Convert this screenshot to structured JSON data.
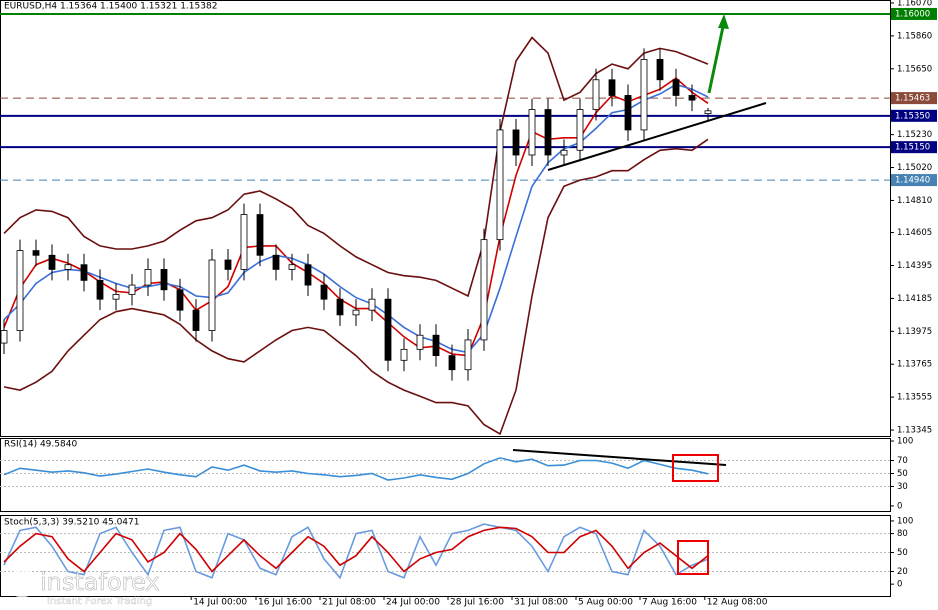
{
  "chart_data": [
    {
      "type": "candlestick",
      "title": "EURUSD,H4  1.15364 1.15400 1.15321 1.15382",
      "xlim": [
        -0.25,
        55.375
      ],
      "ylim": [
        1.13307,
        1.16089
      ],
      "xticks": [
        {
          "value": 11.7,
          "label": "14 Jul 00:00"
        },
        {
          "value": 15.75,
          "label": "16 Jul 16:00"
        },
        {
          "value": 19.75,
          "label": "21 Jul 08:00"
        },
        {
          "value": 23.75,
          "label": "24 Jul 00:00"
        },
        {
          "value": 27.75,
          "label": "28 Jul 16:00"
        },
        {
          "value": 31.75,
          "label": "31 Jul 08:00"
        },
        {
          "value": 35.75,
          "label": "5 Aug 00:00"
        },
        {
          "value": 39.75,
          "label": "7 Aug 16:00"
        },
        {
          "value": 43.8,
          "label": "12 Aug 08:00"
        }
      ],
      "yticks": [
        {
          "value": 1.1607,
          "label": "1.16070"
        },
        {
          "value": 1.1586,
          "label": "1.15860"
        },
        {
          "value": 1.1565,
          "label": "1.15650"
        },
        {
          "value": 1.1523,
          "label": "1.15230"
        },
        {
          "value": 1.1502,
          "label": "1.15020"
        },
        {
          "value": 1.1481,
          "label": "1.14810"
        },
        {
          "value": 1.14605,
          "label": "1.14605"
        },
        {
          "value": 1.14395,
          "label": "1.14395"
        },
        {
          "value": 1.14185,
          "label": "1.14185"
        },
        {
          "value": 1.13975,
          "label": "1.13975"
        },
        {
          "value": 1.13765,
          "label": "1.13765"
        },
        {
          "value": 1.13555,
          "label": "1.13555"
        },
        {
          "value": 1.13345,
          "label": "1.13345"
        }
      ],
      "levels": [
        {
          "value": 1.16,
          "label": "1.16000",
          "color": "#008000",
          "dashed": false
        },
        {
          "value": 1.15463,
          "label": "1.15463",
          "color": "#8b4a3a",
          "dashed": true
        },
        {
          "value": 1.1535,
          "label": "1.15350",
          "color": "#000080",
          "dashed": false
        },
        {
          "value": 1.1515,
          "label": "1.15150",
          "color": "#000080",
          "dashed": false
        },
        {
          "value": 1.1494,
          "label": "1.14940",
          "color": "#4682b4",
          "dashed": true
        }
      ],
      "up_color": "#ffffff",
      "down_color": "#000000",
      "open": [
        1.139,
        1.1398,
        1.1449,
        1.1446,
        1.1437,
        1.144,
        1.143,
        1.1418,
        1.1421,
        1.1427,
        1.1437,
        1.1424,
        1.1411,
        1.1398,
        1.1443,
        1.1437,
        1.1472,
        1.1446,
        1.1437,
        1.144,
        1.1427,
        1.1418,
        1.1408,
        1.1411,
        1.1418,
        1.1379,
        1.1386,
        1.1395,
        1.1382,
        1.1373,
        1.1392,
        1.1456,
        1.1526,
        1.151,
        1.1539,
        1.151,
        1.1513,
        1.1539,
        1.1558,
        1.1548,
        1.1526,
        1.1571,
        1.1558,
        1.1548,
        1.15364
      ],
      "high": [
        1.1405,
        1.1456,
        1.1456,
        1.1453,
        1.1447,
        1.1447,
        1.1437,
        1.1428,
        1.1434,
        1.1444,
        1.1444,
        1.1431,
        1.1418,
        1.145,
        1.145,
        1.1479,
        1.1479,
        1.1453,
        1.1447,
        1.1447,
        1.1434,
        1.1425,
        1.1418,
        1.1425,
        1.1425,
        1.1393,
        1.1402,
        1.1402,
        1.1389,
        1.1399,
        1.1463,
        1.1533,
        1.1533,
        1.1546,
        1.1546,
        1.152,
        1.1546,
        1.1565,
        1.1565,
        1.1555,
        1.1578,
        1.1578,
        1.1565,
        1.1555,
        1.154
      ],
      "low": [
        1.1383,
        1.1391,
        1.1439,
        1.143,
        1.143,
        1.1423,
        1.1411,
        1.1411,
        1.1414,
        1.142,
        1.1417,
        1.1404,
        1.1391,
        1.1391,
        1.143,
        1.143,
        1.1439,
        1.143,
        1.143,
        1.142,
        1.1411,
        1.1401,
        1.1401,
        1.1404,
        1.1372,
        1.1372,
        1.1379,
        1.1375,
        1.1366,
        1.1366,
        1.1385,
        1.1449,
        1.1503,
        1.1503,
        1.1503,
        1.1503,
        1.1506,
        1.1532,
        1.1541,
        1.1519,
        1.1519,
        1.1551,
        1.1541,
        1.1538,
        1.15321
      ],
      "close": [
        1.1398,
        1.1449,
        1.1446,
        1.1437,
        1.144,
        1.143,
        1.1418,
        1.1421,
        1.1427,
        1.1437,
        1.1424,
        1.1411,
        1.1398,
        1.1443,
        1.1437,
        1.1472,
        1.1446,
        1.1437,
        1.144,
        1.1427,
        1.1418,
        1.1408,
        1.1411,
        1.1418,
        1.1379,
        1.1386,
        1.1395,
        1.1382,
        1.1373,
        1.1392,
        1.1456,
        1.1526,
        1.151,
        1.1539,
        1.151,
        1.1513,
        1.1539,
        1.1558,
        1.1548,
        1.1526,
        1.1571,
        1.1558,
        1.1548,
        1.1545,
        1.15382
      ],
      "series": [
        {
          "color": "#d00000",
          "values": [
            1.14,
            1.1425,
            1.144,
            1.1444,
            1.1441,
            1.1436,
            1.1429,
            1.1423,
            1.1422,
            1.1428,
            1.1429,
            1.1424,
            1.1411,
            1.1417,
            1.1426,
            1.1451,
            1.1452,
            1.1452,
            1.1441,
            1.1435,
            1.1428,
            1.1418,
            1.1412,
            1.1412,
            1.1403,
            1.1394,
            1.1387,
            1.1388,
            1.1383,
            1.1382,
            1.1407,
            1.1458,
            1.1497,
            1.1525,
            1.152,
            1.1521,
            1.1521,
            1.1537,
            1.1548,
            1.1544,
            1.1548,
            1.1552,
            1.1559,
            1.155,
            1.1543
          ]
        },
        {
          "color": "#3a6fd8",
          "values": [
            1.1405,
            1.1415,
            1.1428,
            1.1435,
            1.1437,
            1.1436,
            1.1432,
            1.1428,
            1.1425,
            1.1426,
            1.1428,
            1.1426,
            1.142,
            1.1419,
            1.1422,
            1.1435,
            1.1442,
            1.1446,
            1.1444,
            1.144,
            1.1434,
            1.1426,
            1.1419,
            1.1415,
            1.1408,
            1.14,
            1.1394,
            1.1391,
            1.1386,
            1.1384,
            1.1396,
            1.1425,
            1.1458,
            1.149,
            1.1505,
            1.1514,
            1.1518,
            1.1527,
            1.1537,
            1.1539,
            1.1545,
            1.1549,
            1.1555,
            1.1552,
            1.1547
          ]
        },
        {
          "color": "#6b0f0f",
          "values": [
            1.146,
            1.147,
            1.1475,
            1.1474,
            1.147,
            1.1458,
            1.1452,
            1.145,
            1.145,
            1.1452,
            1.1455,
            1.1462,
            1.1468,
            1.147,
            1.1475,
            1.1485,
            1.1487,
            1.1482,
            1.1476,
            1.1465,
            1.146,
            1.1452,
            1.1445,
            1.144,
            1.1435,
            1.1433,
            1.1432,
            1.143,
            1.1425,
            1.142,
            1.1455,
            1.1525,
            1.157,
            1.1585,
            1.1575,
            1.1545,
            1.155,
            1.1562,
            1.1568,
            1.1565,
            1.1575,
            1.1578,
            1.1576,
            1.1572,
            1.1568
          ]
        },
        {
          "color": "#6b0f0f",
          "values": [
            1.1362,
            1.136,
            1.1365,
            1.1372,
            1.1385,
            1.1395,
            1.1405,
            1.141,
            1.1412,
            1.141,
            1.1408,
            1.1402,
            1.1392,
            1.1385,
            1.138,
            1.1378,
            1.1385,
            1.1392,
            1.1398,
            1.14,
            1.1398,
            1.139,
            1.1382,
            1.1372,
            1.1365,
            1.136,
            1.1356,
            1.1352,
            1.1352,
            1.135,
            1.1338,
            1.1332,
            1.136,
            1.142,
            1.147,
            1.149,
            1.1494,
            1.1496,
            1.15,
            1.15,
            1.1507,
            1.1513,
            1.1514,
            1.1513,
            1.152
          ]
        }
      ]
    },
    {
      "type": "line",
      "title": "RSI(14) 49.5840",
      "ylim": [
        -7.8,
        104.7
      ],
      "yticks": [
        0,
        30,
        50,
        70,
        100
      ],
      "series": [
        {
          "color": "#3a8fd8",
          "values": [
            48,
            58,
            55,
            52,
            54,
            51,
            46,
            49,
            53,
            57,
            52,
            48,
            45,
            60,
            55,
            63,
            54,
            52,
            54,
            50,
            48,
            45,
            47,
            50,
            40,
            43,
            48,
            44,
            41,
            50,
            65,
            74,
            68,
            72,
            62,
            63,
            70,
            70,
            66,
            58,
            70,
            64,
            58,
            55,
            49.584
          ]
        }
      ]
    },
    {
      "type": "line",
      "title": "Stoch(5,3,3) 39.5210 45.0471",
      "ylim": [
        -18.75,
        109.4
      ],
      "yticks": [
        0,
        20,
        50,
        80,
        100
      ],
      "series": [
        {
          "color": "#6a9be0",
          "values": [
            30,
            85,
            90,
            60,
            20,
            15,
            80,
            90,
            50,
            15,
            85,
            90,
            20,
            10,
            80,
            70,
            25,
            15,
            75,
            90,
            40,
            10,
            80,
            85,
            20,
            10,
            75,
            30,
            80,
            85,
            95,
            90,
            85,
            60,
            20,
            75,
            90,
            80,
            20,
            15,
            85,
            60,
            15,
            30,
            39.521
          ]
        },
        {
          "color": "#d00000",
          "values": [
            35,
            60,
            80,
            75,
            40,
            20,
            50,
            80,
            70,
            35,
            50,
            80,
            55,
            20,
            45,
            70,
            45,
            25,
            50,
            75,
            60,
            30,
            45,
            75,
            50,
            20,
            40,
            50,
            55,
            75,
            85,
            90,
            88,
            75,
            50,
            50,
            75,
            85,
            60,
            25,
            50,
            65,
            45,
            25,
            45.0471
          ]
        }
      ]
    }
  ],
  "watermark": {
    "brand": "instaforex",
    "tagline": "Instant Forex Trading"
  }
}
